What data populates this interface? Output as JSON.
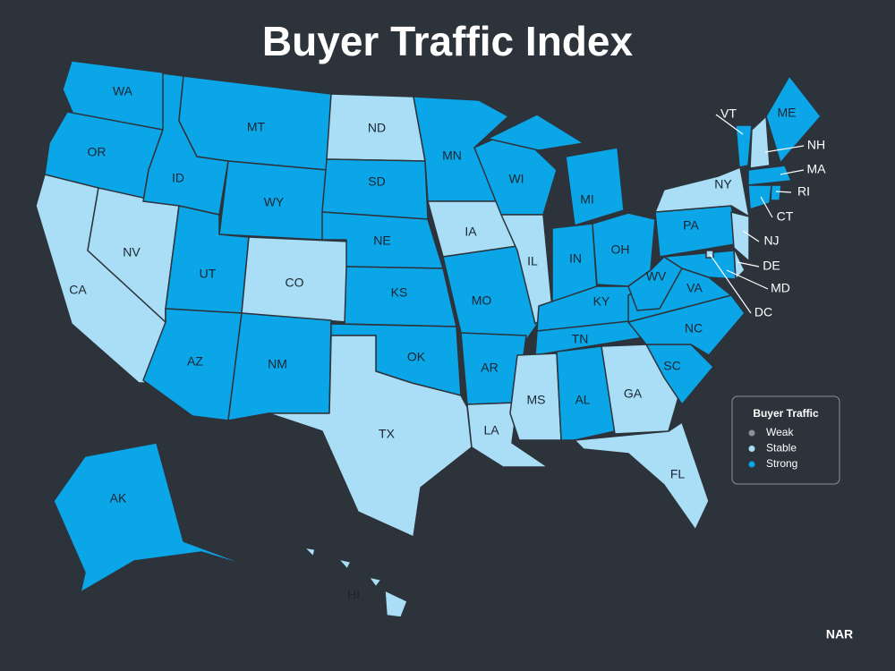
{
  "title": "Buyer Traffic Index",
  "legend": {
    "title": "Buyer Traffic",
    "items": [
      {
        "label": "Weak",
        "color": "#8c9198"
      },
      {
        "label": "Stable",
        "color": "#a9def6"
      },
      {
        "label": "Strong",
        "color": "#0aa6e8"
      }
    ]
  },
  "states": [
    {
      "abbr": "WA",
      "level": "Strong"
    },
    {
      "abbr": "OR",
      "level": "Strong"
    },
    {
      "abbr": "CA",
      "level": "Stable"
    },
    {
      "abbr": "NV",
      "level": "Stable"
    },
    {
      "abbr": "ID",
      "level": "Strong"
    },
    {
      "abbr": "MT",
      "level": "Strong"
    },
    {
      "abbr": "WY",
      "level": "Strong"
    },
    {
      "abbr": "UT",
      "level": "Strong"
    },
    {
      "abbr": "CO",
      "level": "Stable"
    },
    {
      "abbr": "AZ",
      "level": "Strong"
    },
    {
      "abbr": "NM",
      "level": "Strong"
    },
    {
      "abbr": "ND",
      "level": "Stable"
    },
    {
      "abbr": "SD",
      "level": "Strong"
    },
    {
      "abbr": "NE",
      "level": "Strong"
    },
    {
      "abbr": "KS",
      "level": "Strong"
    },
    {
      "abbr": "OK",
      "level": "Strong"
    },
    {
      "abbr": "TX",
      "level": "Stable"
    },
    {
      "abbr": "MN",
      "level": "Strong"
    },
    {
      "abbr": "IA",
      "level": "Stable"
    },
    {
      "abbr": "MO",
      "level": "Strong"
    },
    {
      "abbr": "AR",
      "level": "Strong"
    },
    {
      "abbr": "LA",
      "level": "Stable"
    },
    {
      "abbr": "WI",
      "level": "Strong"
    },
    {
      "abbr": "IL",
      "level": "Stable"
    },
    {
      "abbr": "MI",
      "level": "Strong"
    },
    {
      "abbr": "IN",
      "level": "Strong"
    },
    {
      "abbr": "OH",
      "level": "Strong"
    },
    {
      "abbr": "KY",
      "level": "Strong"
    },
    {
      "abbr": "TN",
      "level": "Strong"
    },
    {
      "abbr": "MS",
      "level": "Stable"
    },
    {
      "abbr": "AL",
      "level": "Strong"
    },
    {
      "abbr": "GA",
      "level": "Stable"
    },
    {
      "abbr": "FL",
      "level": "Stable"
    },
    {
      "abbr": "SC",
      "level": "Strong"
    },
    {
      "abbr": "NC",
      "level": "Strong"
    },
    {
      "abbr": "VA",
      "level": "Strong"
    },
    {
      "abbr": "WV",
      "level": "Strong"
    },
    {
      "abbr": "PA",
      "level": "Strong"
    },
    {
      "abbr": "NY",
      "level": "Stable"
    },
    {
      "abbr": "NJ",
      "level": "Stable"
    },
    {
      "abbr": "DE",
      "level": "Stable"
    },
    {
      "abbr": "MD",
      "level": "Strong"
    },
    {
      "abbr": "DC",
      "level": "Stable"
    },
    {
      "abbr": "VT",
      "level": "Strong"
    },
    {
      "abbr": "NH",
      "level": "Stable"
    },
    {
      "abbr": "ME",
      "level": "Strong"
    },
    {
      "abbr": "MA",
      "level": "Strong"
    },
    {
      "abbr": "RI",
      "level": "Strong"
    },
    {
      "abbr": "CT",
      "level": "Strong"
    },
    {
      "abbr": "AK",
      "level": "Strong"
    },
    {
      "abbr": "HI",
      "level": "Stable"
    }
  ],
  "source": "NAR"
}
